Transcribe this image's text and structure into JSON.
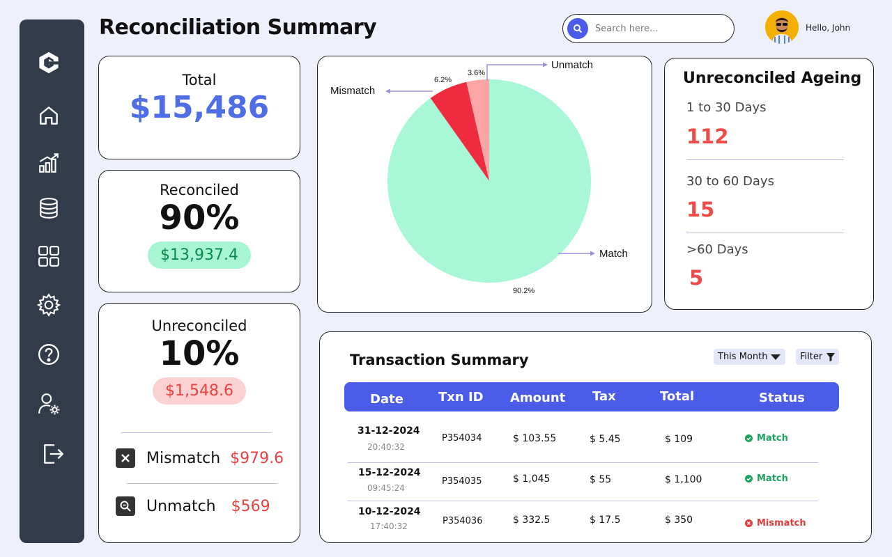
{
  "header": {
    "title": "Reconciliation Summary",
    "search_placeholder": "Search here...",
    "greeting": "Hello, John"
  },
  "sidebar": {
    "items": [
      {
        "icon": "home-icon"
      },
      {
        "icon": "analytics-icon"
      },
      {
        "icon": "database-icon"
      },
      {
        "icon": "grid-icon"
      },
      {
        "icon": "settings-icon"
      },
      {
        "icon": "help-icon"
      },
      {
        "icon": "user-settings-icon"
      },
      {
        "icon": "logout-icon"
      }
    ]
  },
  "kpis": {
    "total": {
      "label": "Total",
      "value": "$15,486"
    },
    "reconciled": {
      "label": "Reconciled",
      "percent": "90%",
      "amount": "$13,937.4"
    },
    "unreconciled": {
      "label": "Unreconciled",
      "percent": "10%",
      "amount": "$1,548.6",
      "mismatch_label": "Mismatch",
      "mismatch_value": "$979.6",
      "unmatch_label": "Unmatch",
      "unmatch_value": "$569"
    }
  },
  "chart_data": {
    "type": "pie",
    "slices": [
      {
        "label": "Match",
        "value": 90.2,
        "display": "90.2%",
        "color": "#a8f8d8"
      },
      {
        "label": "Mismatch",
        "value": 6.2,
        "display": "6.2%",
        "color": "#ef2b40"
      },
      {
        "label": "Unmatch",
        "value": 3.6,
        "display": "3.6%",
        "color": "#fba5a5"
      }
    ]
  },
  "aging": {
    "title": "Unreconciled Ageing",
    "buckets": [
      {
        "label": "1 to 30 Days",
        "value": "112"
      },
      {
        "label": "30 to 60 Days",
        "value": "15"
      },
      {
        "label": ">60 Days",
        "value": "5"
      }
    ]
  },
  "transactions": {
    "title": "Transaction Summary",
    "period_filter": "This Month",
    "filter_label": "Filter",
    "columns": [
      "Date",
      "Txn ID",
      "Amount",
      "Tax",
      "Total",
      "Status"
    ],
    "rows": [
      {
        "date": "31-12-2024",
        "time": "20:40:32",
        "id": "P354034",
        "amount": "$ 103.55",
        "tax": "$ 5.45",
        "total": "$ 109",
        "status": "Match"
      },
      {
        "date": "15-12-2024",
        "time": "09:45:24",
        "id": "P354035",
        "amount": "$ 1,045",
        "tax": "$ 55",
        "total": "$ 1,100",
        "status": "Match"
      },
      {
        "date": "10-12-2024",
        "time": "17:40:32",
        "id": "P354036",
        "amount": "$ 332.5",
        "tax": "$ 17.5",
        "total": "$ 350",
        "status": "Mismatch"
      }
    ]
  },
  "colors": {
    "accent": "#4a5ce8",
    "sidebar": "#323b49",
    "match": "#1aa35c",
    "mismatch": "#e13b3b"
  }
}
